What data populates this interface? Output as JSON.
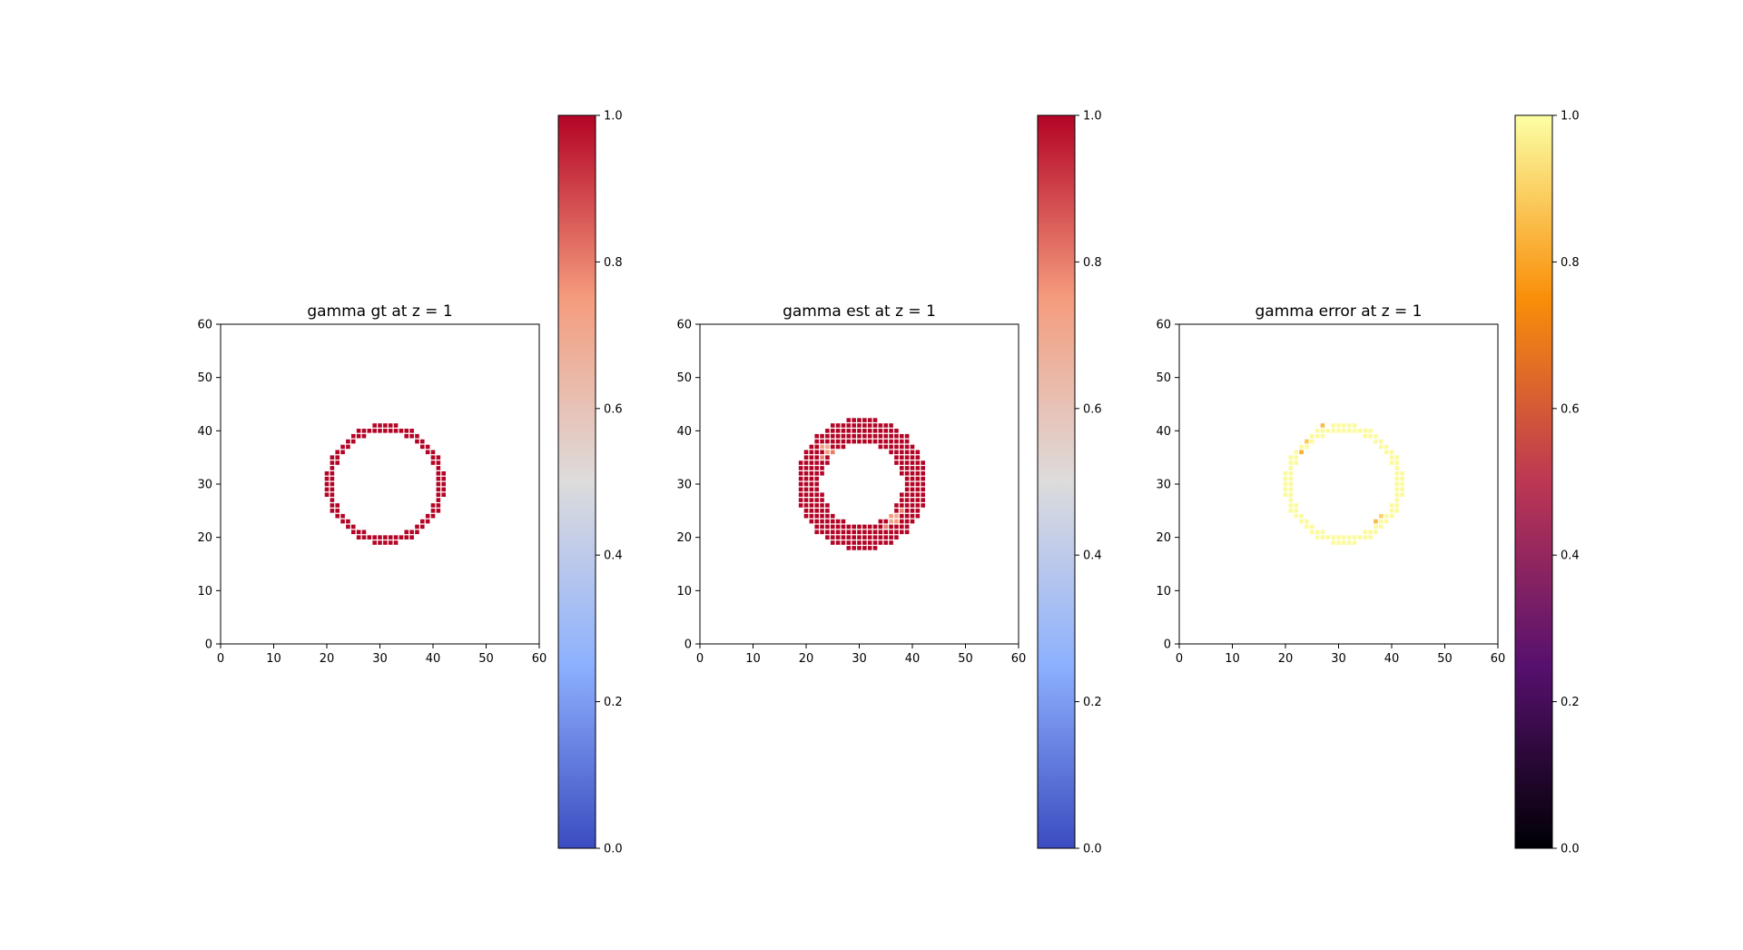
{
  "chart_data": [
    {
      "type": "scatter",
      "title": "gamma gt at z = 1",
      "xlabel": "",
      "ylabel": "",
      "xlim": [
        0,
        60
      ],
      "ylim": [
        0,
        60
      ],
      "xticks": [
        "0",
        "10",
        "20",
        "30",
        "40",
        "50",
        "60"
      ],
      "yticks": [
        "0",
        "10",
        "20",
        "30",
        "40",
        "50",
        "60"
      ],
      "colormap": "coolwarm",
      "colorbar": {
        "ticks": [
          "0.0",
          "0.2",
          "0.4",
          "0.6",
          "0.8",
          "1.0"
        ],
        "range": [
          0,
          1
        ]
      },
      "ring": {
        "center": [
          31,
          30
        ],
        "inner_radius": 9.6,
        "outer_radius": 11.3,
        "value": 1.0
      },
      "anomalies": []
    },
    {
      "type": "scatter",
      "title": "gamma est at z = 1",
      "xlabel": "",
      "ylabel": "",
      "xlim": [
        0,
        60
      ],
      "ylim": [
        0,
        60
      ],
      "xticks": [
        "0",
        "10",
        "20",
        "30",
        "40",
        "50",
        "60"
      ],
      "yticks": [
        "0",
        "10",
        "20",
        "30",
        "40",
        "50",
        "60"
      ],
      "colormap": "coolwarm",
      "colorbar": {
        "ticks": [
          "0.0",
          "0.2",
          "0.4",
          "0.6",
          "0.8",
          "1.0"
        ],
        "range": [
          0,
          1
        ]
      },
      "ring": {
        "center": [
          30.5,
          30
        ],
        "inner_radius": 7.6,
        "outer_radius": 12.4,
        "value": 1.0
      },
      "anomalies": [
        {
          "x": 23,
          "y": 37,
          "value": 0.75
        },
        {
          "x": 24,
          "y": 37,
          "value": 0.7
        },
        {
          "x": 24,
          "y": 36,
          "value": 0.75
        },
        {
          "x": 25,
          "y": 36,
          "value": 0.8
        },
        {
          "x": 23,
          "y": 35,
          "value": 0.8
        },
        {
          "x": 36,
          "y": 24,
          "value": 0.75
        },
        {
          "x": 37,
          "y": 24,
          "value": 0.7
        },
        {
          "x": 36,
          "y": 23,
          "value": 0.7
        },
        {
          "x": 37,
          "y": 23,
          "value": 0.75
        },
        {
          "x": 38,
          "y": 25,
          "value": 0.8
        },
        {
          "x": 35,
          "y": 22,
          "value": 0.8
        }
      ]
    },
    {
      "type": "scatter",
      "title": "gamma error at z = 1",
      "xlabel": "",
      "ylabel": "",
      "xlim": [
        0,
        60
      ],
      "ylim": [
        0,
        60
      ],
      "xticks": [
        "0",
        "10",
        "20",
        "30",
        "40",
        "50",
        "60"
      ],
      "yticks": [
        "0",
        "10",
        "20",
        "30",
        "40",
        "50",
        "60"
      ],
      "colormap": "inferno",
      "colorbar": {
        "ticks": [
          "0.0",
          "0.2",
          "0.4",
          "0.6",
          "0.8",
          "1.0"
        ],
        "range": [
          0,
          1
        ]
      },
      "ring": {
        "center": [
          31,
          30
        ],
        "inner_radius": 9.6,
        "outer_radius": 11.3,
        "value": 0.99
      },
      "anomalies": [
        {
          "x": 27,
          "y": 41,
          "value": 0.85
        },
        {
          "x": 24,
          "y": 38,
          "value": 0.88
        },
        {
          "x": 23,
          "y": 36,
          "value": 0.82
        },
        {
          "x": 37,
          "y": 23,
          "value": 0.85
        },
        {
          "x": 38,
          "y": 24,
          "value": 0.9
        }
      ]
    }
  ]
}
